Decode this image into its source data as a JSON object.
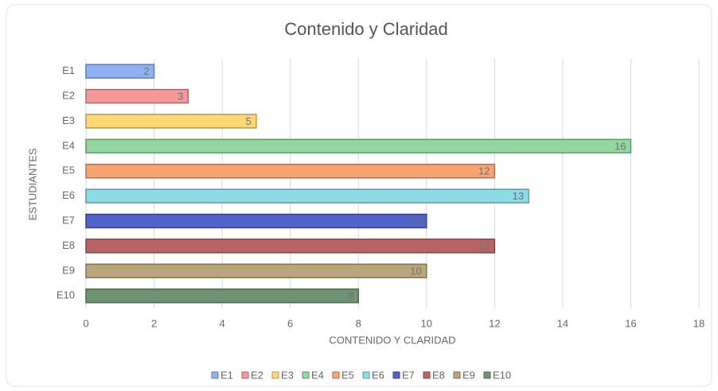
{
  "chart_data": {
    "type": "bar",
    "orientation": "horizontal",
    "title": "Contenido y Claridad",
    "x_label": "CONTENIDO Y CLARIDAD",
    "y_label": "ESTUDIANTES",
    "categories": [
      "E1",
      "E2",
      "E3",
      "E4",
      "E5",
      "E6",
      "E7",
      "E8",
      "E9",
      "E10"
    ],
    "values": [
      2,
      3,
      5,
      16,
      12,
      13,
      10,
      12,
      10,
      8
    ],
    "colors": [
      "#8fb1f2",
      "#f29a9a",
      "#ffd873",
      "#92d6a0",
      "#f7a474",
      "#8cdbe6",
      "#4f63c9",
      "#b86464",
      "#bba57a",
      "#6f9473"
    ],
    "xlim": [
      0,
      18
    ],
    "xticks": [
      0,
      2,
      4,
      6,
      8,
      10,
      12,
      14,
      16,
      18
    ],
    "grid": true,
    "legend": "bottom"
  }
}
